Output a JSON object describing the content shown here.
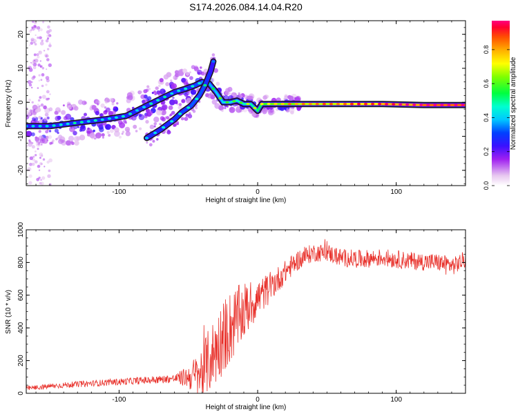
{
  "figure_title": "S174.2026.084.14.04.R20",
  "colors": {
    "snr_line": "#e8302a",
    "axis": "#000000",
    "ridge_outline": "#1a1a1a"
  },
  "chart_data": [
    {
      "type": "heatmap",
      "name": "spectrogram",
      "xlabel": "Height of straight line (km)",
      "ylabel": "Frequency (Hz)",
      "xlim": [
        -167,
        150
      ],
      "ylim": [
        -24.5,
        24
      ],
      "x_ticks": [
        -100,
        0,
        100
      ],
      "y_ticks": [
        -20,
        -10,
        0,
        10,
        20
      ],
      "grid": false,
      "colorbar": {
        "label": "Normalized spectral amplitude",
        "range": [
          0,
          0.97
        ],
        "ticks": [
          0.0,
          0.2,
          0.4,
          0.6,
          0.8
        ],
        "tick_labels": [
          "0.0",
          "0.2",
          "0.4",
          "0.6",
          "0.8"
        ],
        "colormap": "rainbow (white-magenta-blue-cyan-green-yellow-red)"
      },
      "ridges": [
        {
          "name": "carrier",
          "points": [
            [
              -167,
              -7
            ],
            [
              -150,
              -7
            ],
            [
              -130,
              -6
            ],
            [
              -110,
              -5
            ],
            [
              -95,
              -4
            ],
            [
              -80,
              -1
            ],
            [
              -70,
              1
            ],
            [
              -60,
              3
            ],
            [
              -52,
              4
            ],
            [
              -45,
              5
            ],
            [
              -40,
              6
            ],
            [
              -35,
              5.5
            ],
            [
              -30,
              3
            ],
            [
              -25,
              0
            ],
            [
              -20,
              0
            ],
            [
              -15,
              0.5
            ],
            [
              -10,
              -0.5
            ],
            [
              -5,
              -0.5
            ],
            [
              0,
              -2.5
            ],
            [
              3,
              -0.5
            ],
            [
              10,
              -0.5
            ],
            [
              30,
              -0.5
            ],
            [
              60,
              -0.5
            ],
            [
              90,
              -0.5
            ],
            [
              120,
              -0.8
            ],
            [
              150,
              -0.8
            ]
          ],
          "amplitudes": [
            0.25,
            0.3,
            0.3,
            0.3,
            0.3,
            0.28,
            0.28,
            0.3,
            0.3,
            0.32,
            0.35,
            0.38,
            0.4,
            0.42,
            0.44,
            0.45,
            0.48,
            0.5,
            0.5,
            0.58,
            0.62,
            0.68,
            0.72,
            0.78,
            0.85,
            0.9
          ]
        },
        {
          "name": "lower-branch",
          "points": [
            [
              -80,
              -10.5
            ],
            [
              -70,
              -8
            ],
            [
              -60,
              -5
            ],
            [
              -55,
              -3
            ],
            [
              -48,
              -1
            ],
            [
              -42,
              2
            ],
            [
              -38,
              5
            ],
            [
              -34,
              9
            ],
            [
              -32,
              12
            ]
          ],
          "amplitudes": [
            0.3,
            0.28,
            0.3,
            0.32,
            0.33,
            0.35,
            0.32,
            0.28,
            0.22
          ]
        }
      ]
    },
    {
      "type": "line",
      "name": "snr",
      "xlabel": "Height of straight line (km)",
      "ylabel": "SNR (10 * v/v)",
      "xlim": [
        -167,
        150
      ],
      "ylim": [
        0,
        1000
      ],
      "x_ticks": [
        -100,
        0,
        100
      ],
      "y_ticks": [
        0,
        200,
        400,
        600,
        800,
        1000
      ],
      "grid": false,
      "trend": {
        "x": [
          -167,
          -140,
          -120,
          -100,
          -80,
          -60,
          -50,
          -42,
          -35,
          -28,
          -22,
          -15,
          -8,
          0,
          8,
          15,
          22,
          30,
          40,
          50,
          60,
          75,
          90,
          110,
          130,
          142,
          150
        ],
        "y": [
          30,
          50,
          60,
          70,
          80,
          90,
          100,
          110,
          200,
          300,
          380,
          450,
          520,
          580,
          640,
          700,
          760,
          820,
          860,
          860,
          830,
          820,
          830,
          810,
          800,
          780,
          820
        ]
      },
      "noise_amplitude": {
        "x": [
          -167,
          -60,
          -50,
          -40,
          -30,
          -20,
          -10,
          0,
          10,
          20,
          40,
          80,
          150
        ],
        "y": [
          15,
          25,
          70,
          180,
          220,
          230,
          180,
          120,
          90,
          70,
          55,
          55,
          55
        ]
      }
    }
  ]
}
